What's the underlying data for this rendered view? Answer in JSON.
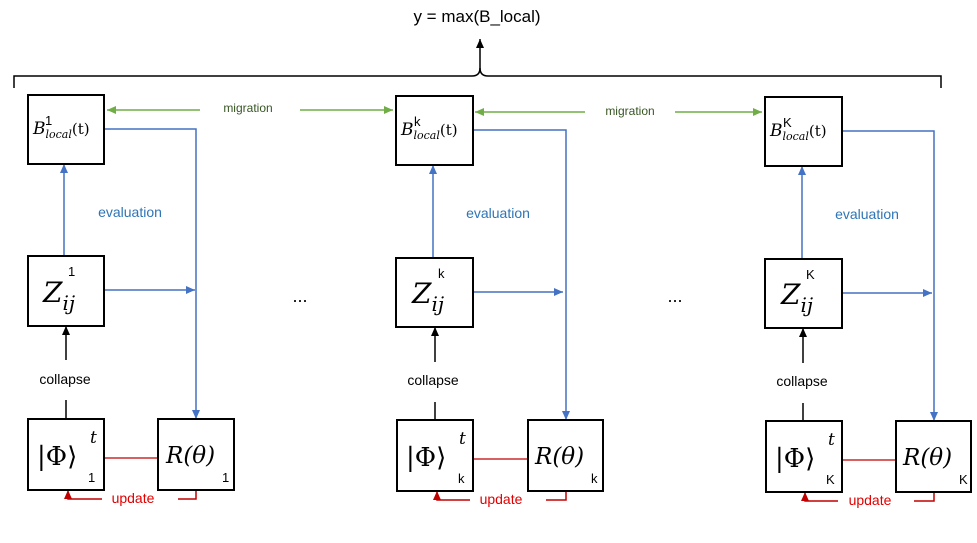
{
  "title": "y = max(B_local)",
  "migration_label": "migration",
  "ellipsis": "...",
  "columns": [
    {
      "index_label": "1",
      "b_symbol": "B",
      "b_subscript": "local",
      "b_arg": "(t)",
      "z_symbol": "Z",
      "z_subscript": "ij",
      "phi_text": "|Φ⟩",
      "phi_superscript": "t",
      "r_text": "R(θ)",
      "evaluation_label": "evaluation",
      "collapse_label": "collapse",
      "update_label": "update"
    },
    {
      "index_label": "k",
      "b_symbol": "B",
      "b_subscript": "local",
      "b_arg": "(t)",
      "z_symbol": "Z",
      "z_subscript": "ij",
      "phi_text": "|Φ⟩",
      "phi_superscript": "t",
      "r_text": "R(θ)",
      "evaluation_label": "evaluation",
      "collapse_label": "collapse",
      "update_label": "update"
    },
    {
      "index_label": "K",
      "b_symbol": "B",
      "b_subscript": "local",
      "b_arg": "(t)",
      "z_symbol": "Z",
      "z_subscript": "ij",
      "phi_text": "|Φ⟩",
      "phi_superscript": "t",
      "r_text": "R(θ)",
      "evaluation_label": "evaluation",
      "collapse_label": "collapse",
      "update_label": "update"
    }
  ],
  "colors": {
    "blue": "#4472c4",
    "blue_text": "#2e75b6",
    "green": "#70ad47",
    "green_text": "#375623",
    "red": "#c00000",
    "red_text": "#e00000",
    "black": "#000000"
  }
}
